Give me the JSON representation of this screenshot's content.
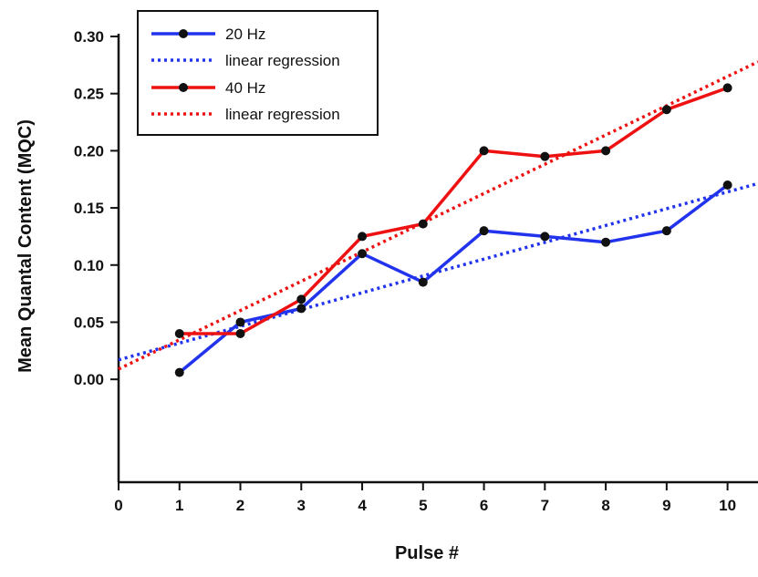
{
  "chart_data": {
    "type": "line",
    "xlabel": "Pulse #",
    "ylabel": "Mean Quantal Content (MQC)",
    "xlim": [
      0,
      10.5
    ],
    "ylim": [
      -0.09,
      0.3
    ],
    "x_ticks": [
      "0",
      "1",
      "2",
      "3",
      "4",
      "5",
      "6",
      "7",
      "8",
      "9",
      "10"
    ],
    "y_ticks": [
      "0.00",
      "0.05",
      "0.10",
      "0.15",
      "0.20",
      "0.25",
      "0.30"
    ],
    "x": [
      1,
      2,
      3,
      4,
      5,
      6,
      7,
      8,
      9,
      10
    ],
    "series": [
      {
        "name": "20 Hz",
        "color": "#2233ee",
        "values": [
          0.006,
          0.05,
          0.062,
          0.11,
          0.085,
          0.13,
          0.125,
          0.12,
          0.13,
          0.17
        ],
        "regression": {
          "name": "linear regression",
          "intercept": 0.017,
          "slope": 0.0147
        }
      },
      {
        "name": "40 Hz",
        "color": "#ee1111",
        "values": [
          0.04,
          0.04,
          0.07,
          0.125,
          0.136,
          0.2,
          0.195,
          0.2,
          0.236,
          0.255
        ],
        "regression": {
          "name": "linear regression",
          "intercept": 0.009,
          "slope": 0.0256
        }
      }
    ],
    "legend": {
      "placement": "top-left",
      "entries": [
        "20 Hz",
        "linear regression",
        "40 Hz",
        "linear regression"
      ]
    },
    "grid": false
  }
}
